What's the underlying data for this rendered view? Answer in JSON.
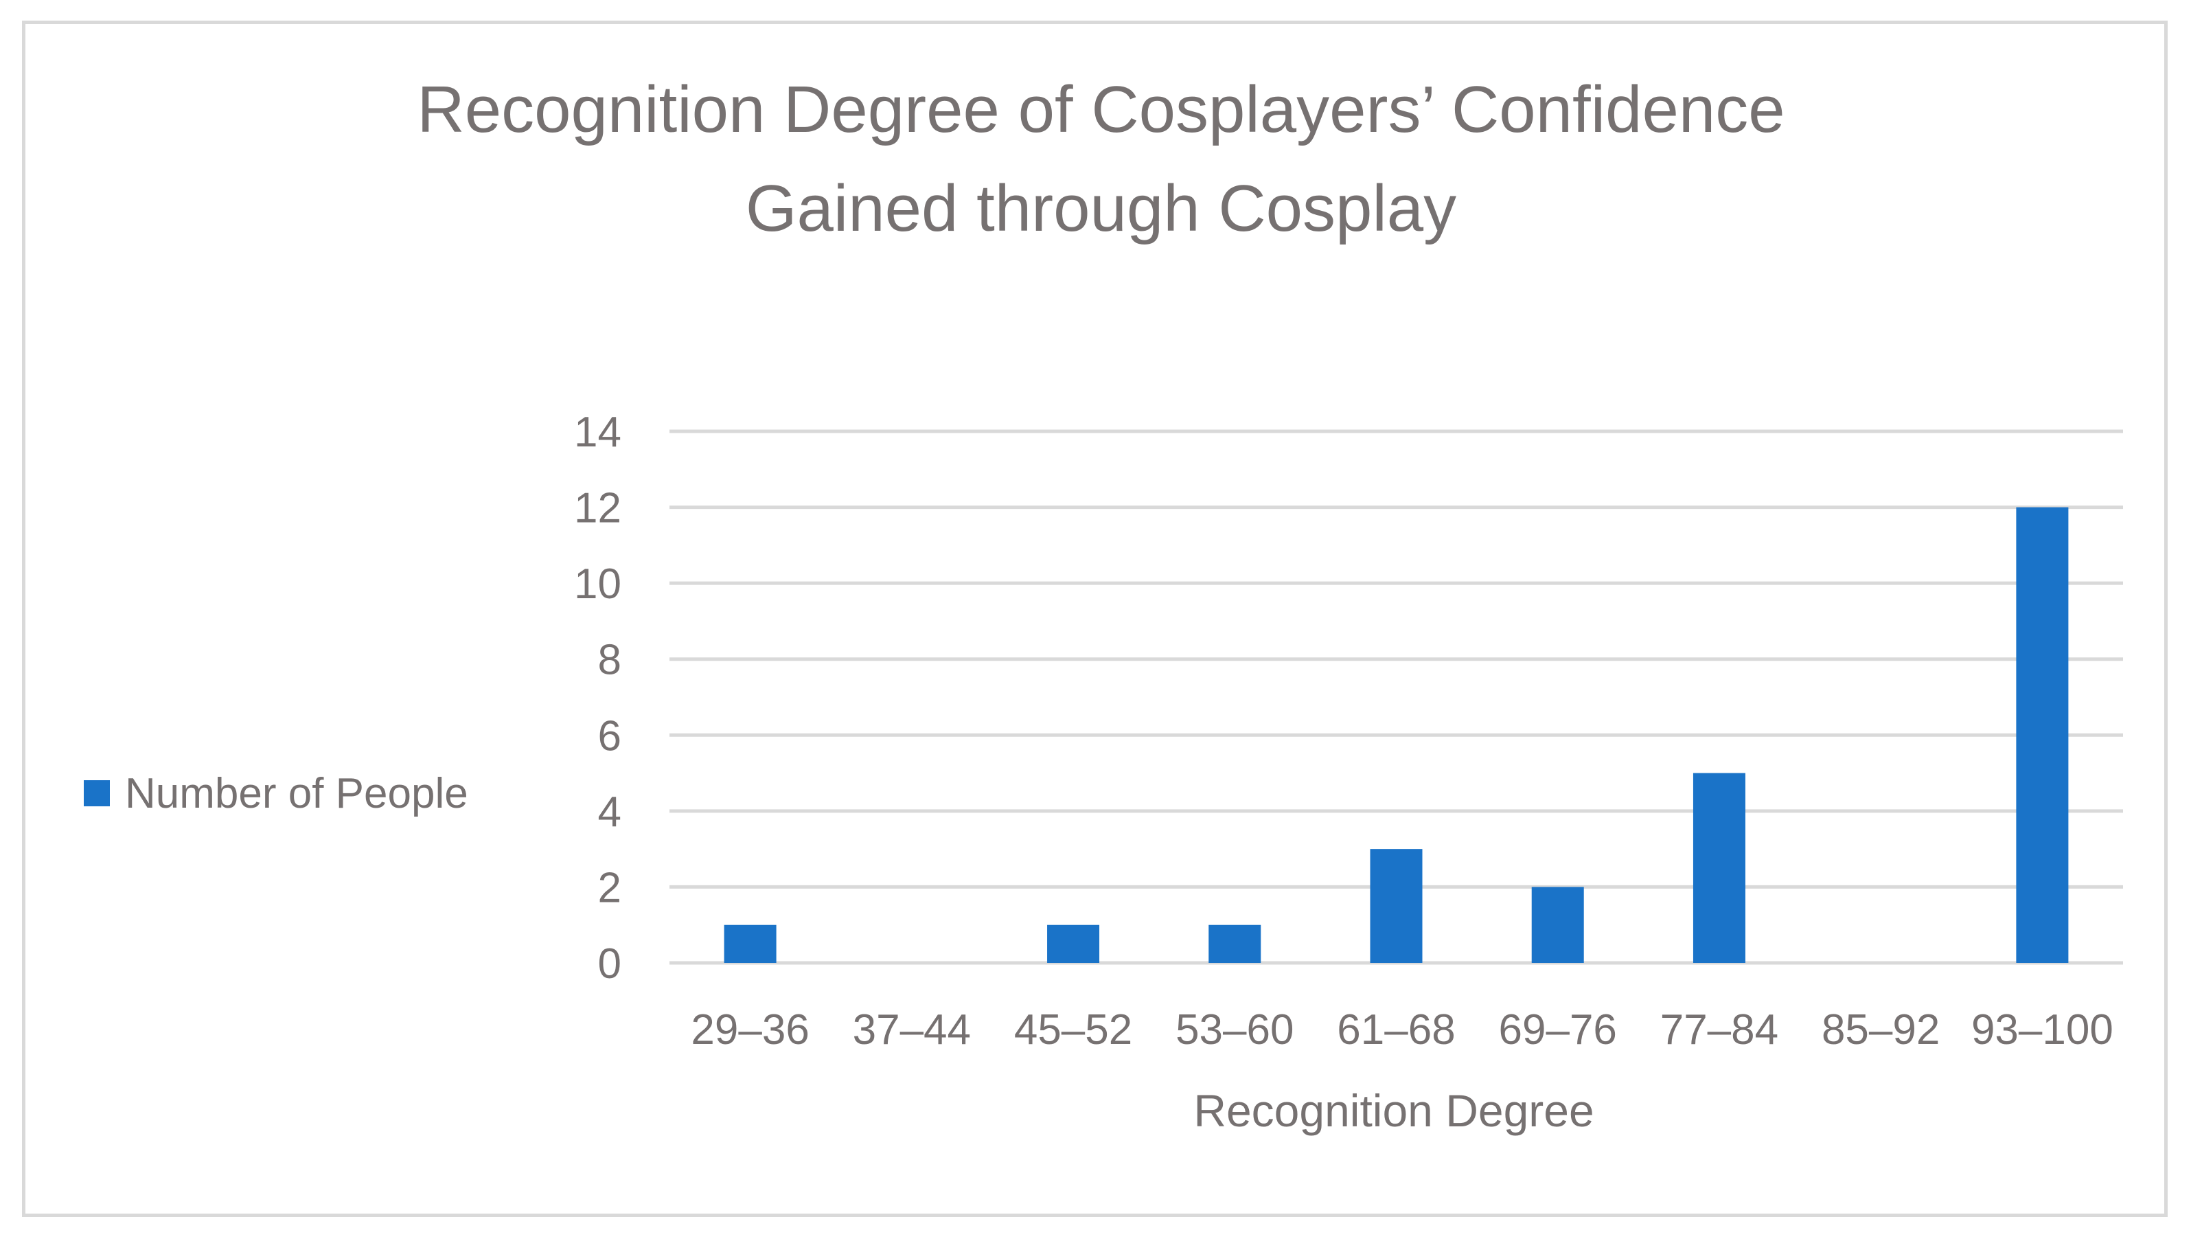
{
  "chart_data": {
    "type": "bar",
    "title_lines": [
      "Recognition Degree of Cosplayers’ Confidence",
      "Gained through Cosplay"
    ],
    "xlabel": "Recognition Degree",
    "ylabel": "",
    "categories": [
      "29–36",
      "37–44",
      "45–52",
      "53–60",
      "61–68",
      "69–76",
      "77–84",
      "85–92",
      "93–100"
    ],
    "series": [
      {
        "name": "Number of People",
        "values": [
          1,
          0,
          1,
          1,
          3,
          2,
          5,
          0,
          12
        ],
        "color": "#1a73c8"
      }
    ],
    "ylim": [
      0,
      14
    ],
    "yticks": [
      0,
      2,
      4,
      6,
      8,
      10,
      12,
      14
    ],
    "grid": true,
    "legend_position": "left",
    "colors": {
      "text": "#767171",
      "grid": "#d9d9d9",
      "border": "#d9d9d9",
      "bar": "#1a73c8"
    }
  }
}
